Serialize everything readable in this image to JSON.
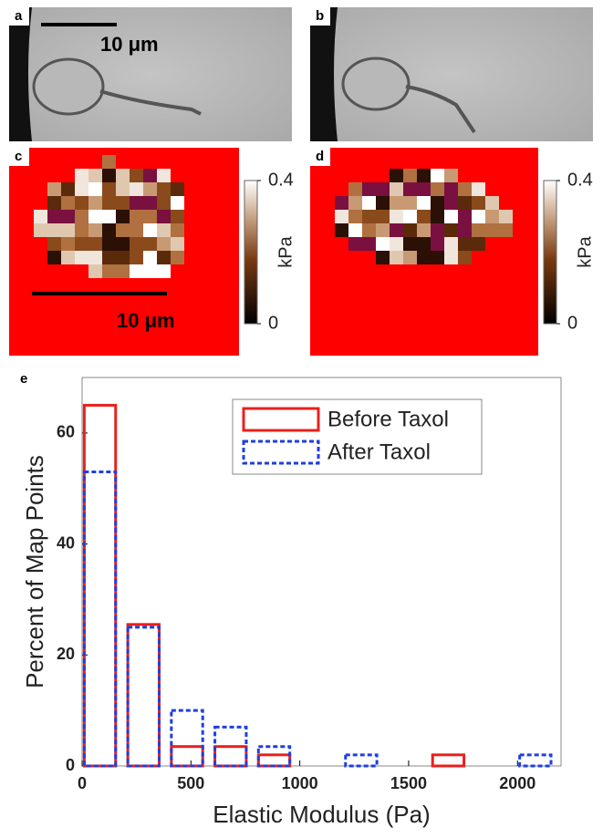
{
  "panels": {
    "a": {
      "label": "a",
      "scale_bar": "10 μm"
    },
    "b": {
      "label": "b"
    },
    "c": {
      "label": "c",
      "scale_bar": "10 μm",
      "colorbar": {
        "label": "kPa",
        "ticks": [
          0,
          0.4
        ]
      }
    },
    "d": {
      "label": "d",
      "colorbar": {
        "label": "kPa",
        "ticks": [
          0,
          0.4
        ]
      }
    },
    "e": {
      "label": "e"
    }
  },
  "chart_data": {
    "type": "histogram",
    "x_label": "Elastic Modulus (Pa)",
    "y_label": "Percent of Map Points",
    "bins": [
      0,
      200,
      400,
      600,
      800,
      1000,
      1200,
      1400,
      1600,
      1800,
      2000,
      2200
    ],
    "series": [
      {
        "name": "Before Taxol",
        "color": "#e8201c",
        "style": "solid",
        "values": [
          65,
          25.5,
          3.5,
          3.5,
          2,
          0,
          0,
          0,
          2,
          0,
          0
        ]
      },
      {
        "name": "After Taxol",
        "color": "#1f3fe0",
        "style": "dashed",
        "values": [
          53,
          25,
          10,
          7,
          3.5,
          0,
          2,
          0,
          0,
          0,
          2
        ]
      }
    ],
    "xlim": [
      0,
      2200
    ],
    "xticks": [
      0,
      500,
      1000,
      1500,
      2000
    ],
    "ylim": [
      0,
      70
    ],
    "yticks": [
      0,
      20,
      40,
      60
    ],
    "legend": "upper-right"
  }
}
